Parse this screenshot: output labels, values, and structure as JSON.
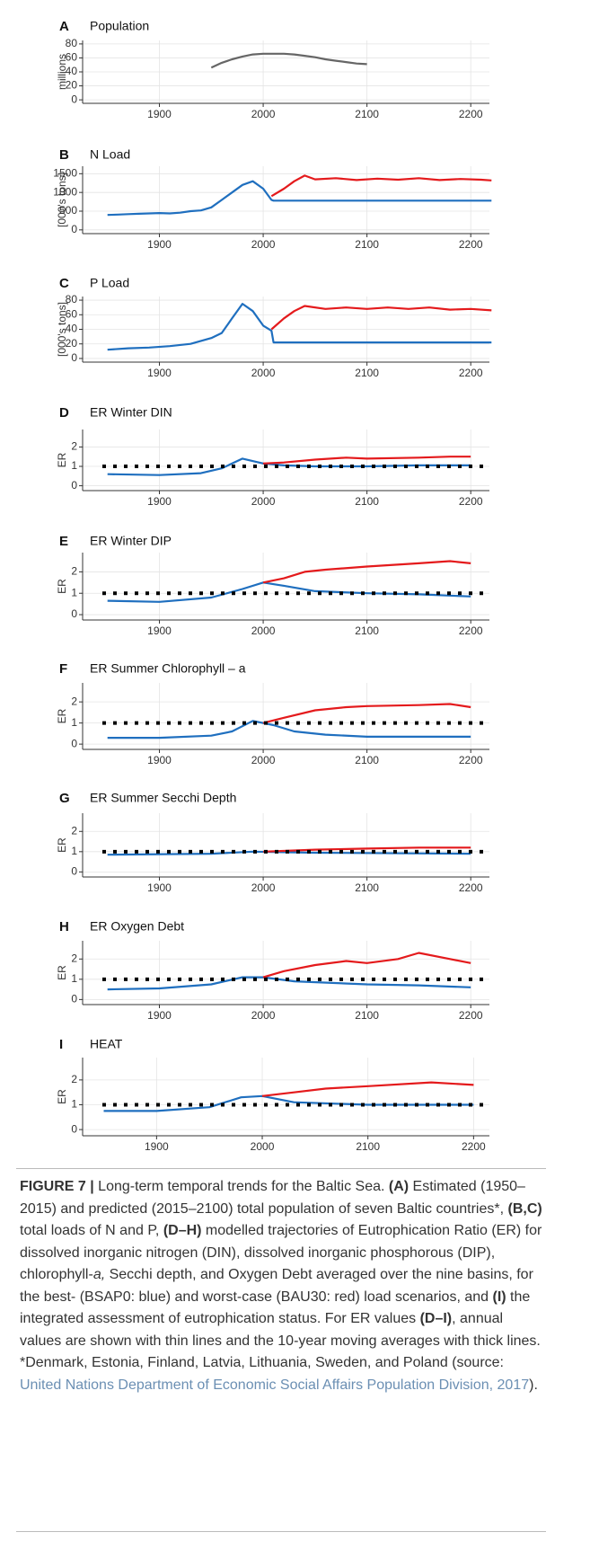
{
  "chart_data": [
    {
      "type": "line",
      "panel": "A",
      "title": "Population",
      "ylabel": "millions",
      "xlim": [
        1826,
        2218
      ],
      "xticks": [
        1900,
        2000,
        2100,
        2200
      ],
      "ylim": [
        -5,
        85
      ],
      "yticks": [
        0,
        20,
        40,
        60,
        80
      ],
      "grid": true,
      "series": [
        {
          "color": "#666666",
          "x": [
            1950,
            1960,
            1970,
            1980,
            1990,
            2000,
            2010,
            2020,
            2030,
            2040,
            2050,
            2060,
            2070,
            2080,
            2090,
            2100
          ],
          "values": [
            46,
            53,
            58,
            62,
            65,
            66,
            66,
            66,
            65,
            63,
            61,
            58,
            56,
            54,
            52,
            51
          ]
        }
      ]
    },
    {
      "type": "line",
      "panel": "B",
      "title": "N Load",
      "ylabel": "[000's tons]",
      "xlim": [
        1826,
        2218
      ],
      "xticks": [
        1900,
        2000,
        2100,
        2200
      ],
      "ylim": [
        -100,
        1700
      ],
      "yticks": [
        0,
        500,
        1000,
        1500
      ],
      "grid": true,
      "series": [
        {
          "color": "#1f6fbf",
          "x": [
            1850,
            1860,
            1870,
            1880,
            1890,
            1900,
            1910,
            1920,
            1930,
            1940,
            1950,
            1960,
            1970,
            1980,
            1990,
            2000,
            2008,
            2010,
            2220
          ],
          "values": [
            400,
            410,
            420,
            430,
            440,
            450,
            440,
            460,
            500,
            520,
            600,
            800,
            1000,
            1200,
            1300,
            1100,
            800,
            780,
            780
          ]
        },
        {
          "color": "#e41a1c",
          "x": [
            2008,
            2020,
            2030,
            2040,
            2050,
            2070,
            2090,
            2110,
            2130,
            2150,
            2170,
            2190,
            2210,
            2220
          ],
          "values": [
            900,
            1100,
            1300,
            1450,
            1350,
            1380,
            1330,
            1370,
            1340,
            1380,
            1330,
            1360,
            1340,
            1320
          ]
        }
      ]
    },
    {
      "type": "line",
      "panel": "C",
      "title": "P Load",
      "ylabel": "[000's tons]",
      "xlim": [
        1826,
        2218
      ],
      "xticks": [
        1900,
        2000,
        2100,
        2200
      ],
      "ylim": [
        -5,
        85
      ],
      "yticks": [
        0,
        20,
        40,
        60,
        80
      ],
      "grid": true,
      "series": [
        {
          "color": "#1f6fbf",
          "x": [
            1850,
            1870,
            1890,
            1910,
            1930,
            1950,
            1960,
            1970,
            1980,
            1990,
            2000,
            2008,
            2010,
            2220
          ],
          "values": [
            12,
            14,
            15,
            17,
            20,
            28,
            35,
            55,
            75,
            65,
            45,
            38,
            22,
            22
          ]
        },
        {
          "color": "#e41a1c",
          "x": [
            2008,
            2020,
            2030,
            2040,
            2060,
            2080,
            2100,
            2120,
            2140,
            2160,
            2180,
            2200,
            2220
          ],
          "values": [
            40,
            55,
            65,
            72,
            68,
            70,
            68,
            70,
            68,
            70,
            67,
            68,
            66
          ]
        }
      ]
    },
    {
      "type": "line",
      "panel": "D",
      "title": "ER Winter DIN",
      "ylabel": "ER",
      "xlim": [
        1826,
        2218
      ],
      "xticks": [
        1900,
        2000,
        2100,
        2200
      ],
      "ylim": [
        -0.25,
        2.9
      ],
      "yticks": [
        0,
        1,
        2
      ],
      "grid": true,
      "hline": 1,
      "series": [
        {
          "color": "#1f6fbf",
          "x": [
            1850,
            1900,
            1940,
            1960,
            1980,
            2000,
            2020,
            2050,
            2100,
            2150,
            2200
          ],
          "values": [
            0.6,
            0.55,
            0.65,
            0.9,
            1.4,
            1.15,
            1.05,
            1.0,
            1.0,
            1.05,
            1.05
          ]
        },
        {
          "color": "#e41a1c",
          "x": [
            2000,
            2020,
            2050,
            2080,
            2100,
            2150,
            2180,
            2200
          ],
          "values": [
            1.15,
            1.2,
            1.35,
            1.45,
            1.4,
            1.45,
            1.5,
            1.5
          ]
        }
      ]
    },
    {
      "type": "line",
      "panel": "E",
      "title": "ER Winter DIP",
      "ylabel": "ER",
      "xlim": [
        1826,
        2218
      ],
      "xticks": [
        1900,
        2000,
        2100,
        2200
      ],
      "ylim": [
        -0.25,
        2.9
      ],
      "yticks": [
        0,
        1,
        2
      ],
      "grid": true,
      "hline": 1,
      "series": [
        {
          "color": "#1f6fbf",
          "x": [
            1850,
            1900,
            1950,
            1980,
            2000,
            2020,
            2050,
            2100,
            2150,
            2200
          ],
          "values": [
            0.65,
            0.6,
            0.8,
            1.2,
            1.5,
            1.35,
            1.1,
            1.0,
            0.95,
            0.85
          ]
        },
        {
          "color": "#e41a1c",
          "x": [
            2000,
            2020,
            2040,
            2060,
            2100,
            2150,
            2180,
            2200
          ],
          "values": [
            1.5,
            1.7,
            2.0,
            2.1,
            2.25,
            2.4,
            2.5,
            2.4
          ]
        }
      ]
    },
    {
      "type": "line",
      "panel": "F",
      "title": "ER Summer Chlorophyll – a",
      "ylabel": "ER",
      "xlim": [
        1826,
        2218
      ],
      "xticks": [
        1900,
        2000,
        2100,
        2200
      ],
      "ylim": [
        -0.25,
        2.9
      ],
      "yticks": [
        0,
        1,
        2
      ],
      "grid": true,
      "hline": 1,
      "series": [
        {
          "color": "#1f6fbf",
          "x": [
            1850,
            1900,
            1950,
            1970,
            1990,
            2010,
            2030,
            2060,
            2100,
            2150,
            2200
          ],
          "values": [
            0.3,
            0.3,
            0.4,
            0.6,
            1.1,
            0.9,
            0.6,
            0.45,
            0.35,
            0.35,
            0.35
          ]
        },
        {
          "color": "#e41a1c",
          "x": [
            2000,
            2020,
            2050,
            2080,
            2100,
            2150,
            2180,
            2200
          ],
          "values": [
            1.0,
            1.25,
            1.6,
            1.75,
            1.8,
            1.85,
            1.9,
            1.75
          ]
        }
      ]
    },
    {
      "type": "line",
      "panel": "G",
      "title": "ER Summer Secchi Depth",
      "ylabel": "ER",
      "xlim": [
        1826,
        2218
      ],
      "xticks": [
        1900,
        2000,
        2100,
        2200
      ],
      "ylim": [
        -0.25,
        2.9
      ],
      "yticks": [
        0,
        1,
        2
      ],
      "grid": true,
      "hline": 1,
      "series": [
        {
          "color": "#1f6fbf",
          "x": [
            1850,
            1950,
            1990,
            2050,
            2200
          ],
          "values": [
            0.85,
            0.9,
            1.0,
            0.95,
            0.9
          ]
        },
        {
          "color": "#e41a1c",
          "x": [
            2000,
            2050,
            2100,
            2150,
            2200
          ],
          "values": [
            1.0,
            1.1,
            1.15,
            1.2,
            1.2
          ]
        }
      ]
    },
    {
      "type": "line",
      "panel": "H",
      "title": "ER Oxygen Debt",
      "ylabel": "ER",
      "xlim": [
        1826,
        2218
      ],
      "xticks": [
        1900,
        2000,
        2100,
        2200
      ],
      "ylim": [
        -0.25,
        2.9
      ],
      "yticks": [
        0,
        1,
        2
      ],
      "grid": true,
      "hline": 1,
      "series": [
        {
          "color": "#1f6fbf",
          "x": [
            1850,
            1900,
            1950,
            1980,
            2000,
            2030,
            2100,
            2150,
            2200
          ],
          "values": [
            0.5,
            0.55,
            0.75,
            1.1,
            1.1,
            0.9,
            0.75,
            0.7,
            0.6
          ]
        },
        {
          "color": "#e41a1c",
          "x": [
            2000,
            2020,
            2050,
            2080,
            2100,
            2130,
            2150,
            2180,
            2200
          ],
          "values": [
            1.1,
            1.4,
            1.7,
            1.9,
            1.8,
            2.0,
            2.3,
            2.0,
            1.8
          ]
        }
      ]
    },
    {
      "type": "line",
      "panel": "I",
      "title": "HEAT",
      "ylabel": "ER",
      "xlim": [
        1830,
        2215
      ],
      "xticks": [
        1900,
        2000,
        2100,
        2200
      ],
      "ylim": [
        -0.25,
        2.9
      ],
      "yticks": [
        0,
        1,
        2
      ],
      "grid": true,
      "hline": 1,
      "series": [
        {
          "color": "#1f6fbf",
          "x": [
            1850,
            1900,
            1950,
            1980,
            2000,
            2030,
            2100,
            2200
          ],
          "values": [
            0.75,
            0.75,
            0.9,
            1.3,
            1.35,
            1.1,
            1.0,
            1.0
          ]
        },
        {
          "color": "#e41a1c",
          "x": [
            2000,
            2030,
            2060,
            2100,
            2160,
            2200
          ],
          "values": [
            1.35,
            1.5,
            1.65,
            1.75,
            1.9,
            1.8
          ]
        }
      ]
    }
  ],
  "caption": [
    {
      "text": "FIGURE 7 |",
      "style": "bold"
    },
    {
      "text": " Long-term temporal trends for the Baltic Sea. "
    },
    {
      "text": "(A)",
      "style": "bold"
    },
    {
      "text": " Estimated (1950–2015) and predicted (2015–2100) total population of seven Baltic countries*, "
    },
    {
      "text": "(B,C)",
      "style": "bold"
    },
    {
      "text": " total loads of N and P, "
    },
    {
      "text": "(D–H)",
      "style": "bold"
    },
    {
      "text": " modelled trajectories of Eutrophication Ratio (ER) for dissolved inorganic nitrogen (DIN), dissolved inorganic phosphorous (DIP), chlorophyll-"
    },
    {
      "text": "a,",
      "style": "italic"
    },
    {
      "text": " Secchi depth, and Oxygen Debt averaged over the nine basins, for the best- (BSAP0: blue) and worst-case (BAU30: red) load scenarios, and "
    },
    {
      "text": "(I)",
      "style": "bold"
    },
    {
      "text": " the integrated assessment of eutrophication status. For ER values "
    },
    {
      "text": "(D–I)",
      "style": "bold"
    },
    {
      "text": ", annual values are shown with thin lines and the 10-year moving averages with thick lines. *Denmark, Estonia, Finland, Latvia, Lithuania, Sweden, and Poland (source: "
    },
    {
      "text": "United Nations Department of Economic Social Affairs Population Division, 2017",
      "style": "link"
    },
    {
      "text": ")."
    }
  ]
}
